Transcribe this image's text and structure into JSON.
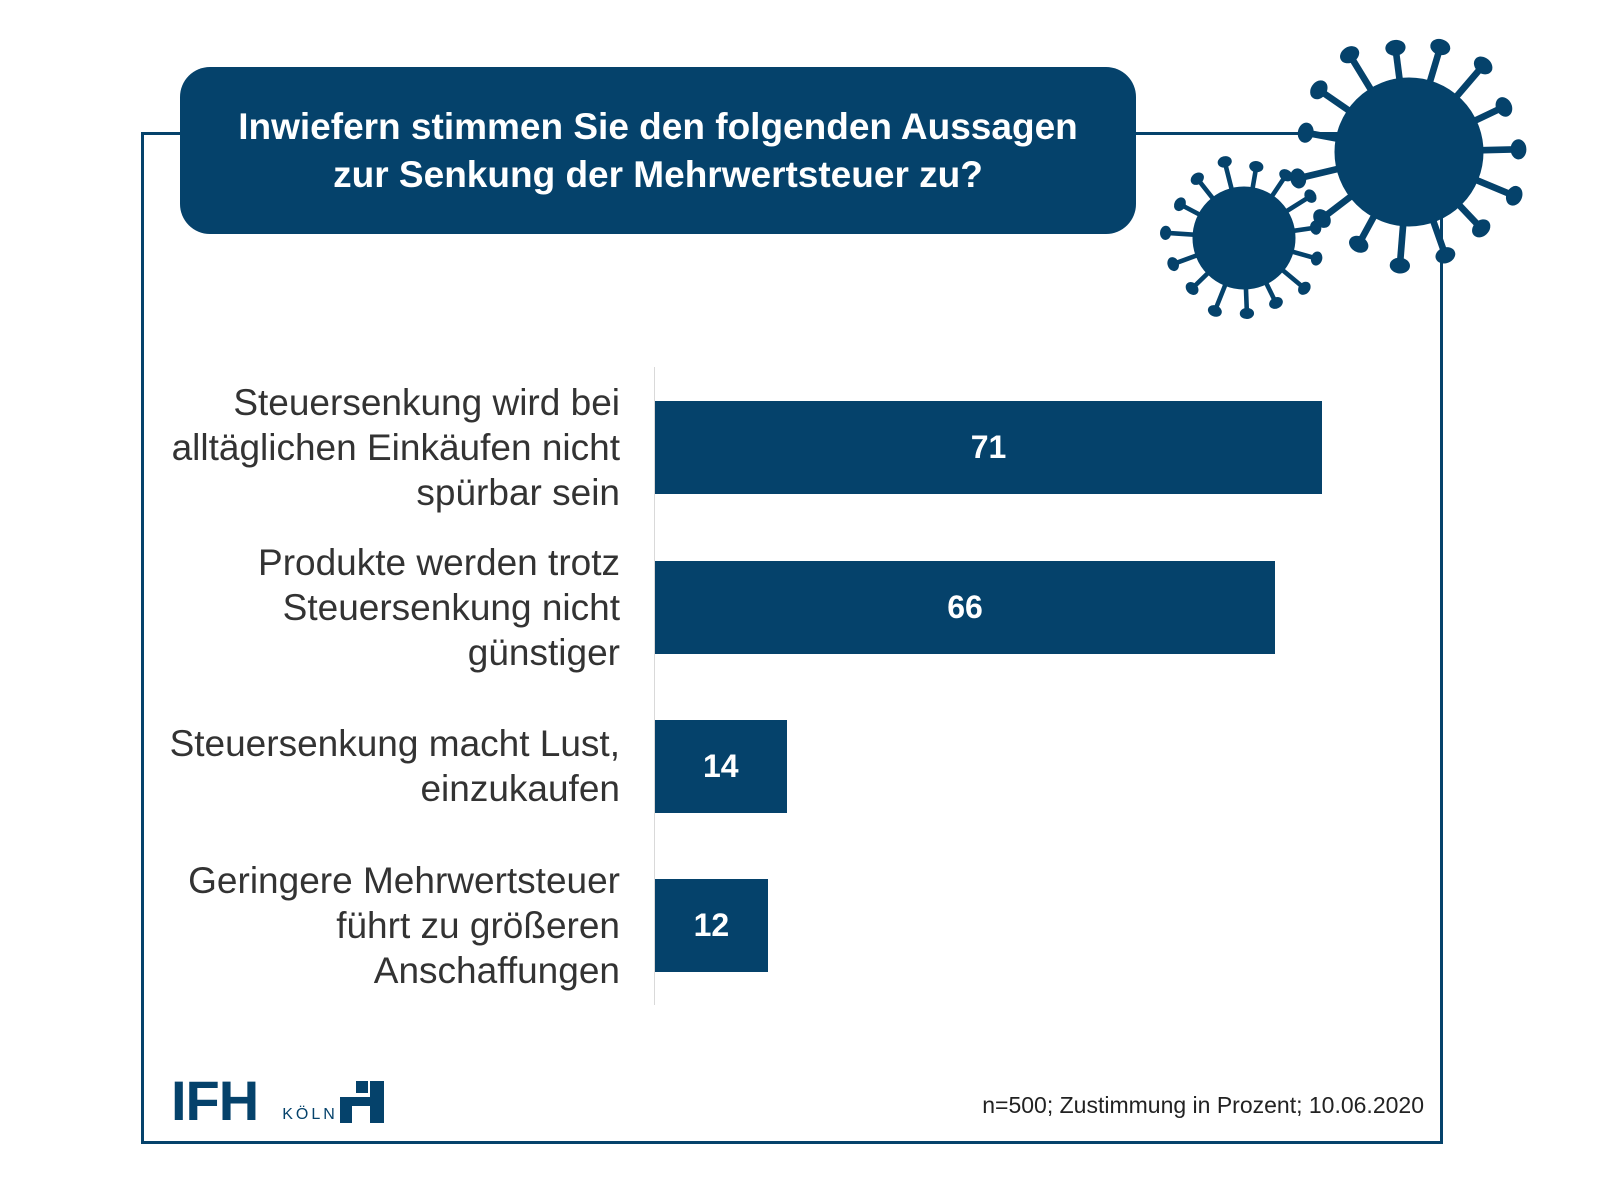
{
  "colors": {
    "brand": "#05426b"
  },
  "logo": {
    "text": "IFH",
    "subtext": "KÖLN"
  },
  "footnote": "n=500; Zustimmung in Prozent; 10.06.2020",
  "decoration": [
    "virus-icon-large",
    "virus-icon-small"
  ],
  "chart_data": {
    "type": "bar",
    "orientation": "horizontal",
    "title": "Inwiefern stimmen Sie den folgenden Aussagen zur Senkung der Mehrwertsteuer zu?",
    "categories": [
      "Steuersenkung wird bei alltäglichen Einkäufen nicht spürbar sein",
      "Produkte werden trotz Steuersenkung nicht günstiger",
      "Steuersenkung macht Lust, einzukaufen",
      "Geringere Mehrwertsteuer führt zu größeren Anschaffungen"
    ],
    "values": [
      71,
      66,
      14,
      12
    ],
    "data_labels": [
      "71",
      "66",
      "14",
      "12"
    ],
    "xlim": [
      0,
      71
    ],
    "grid": false,
    "legend": "none"
  }
}
